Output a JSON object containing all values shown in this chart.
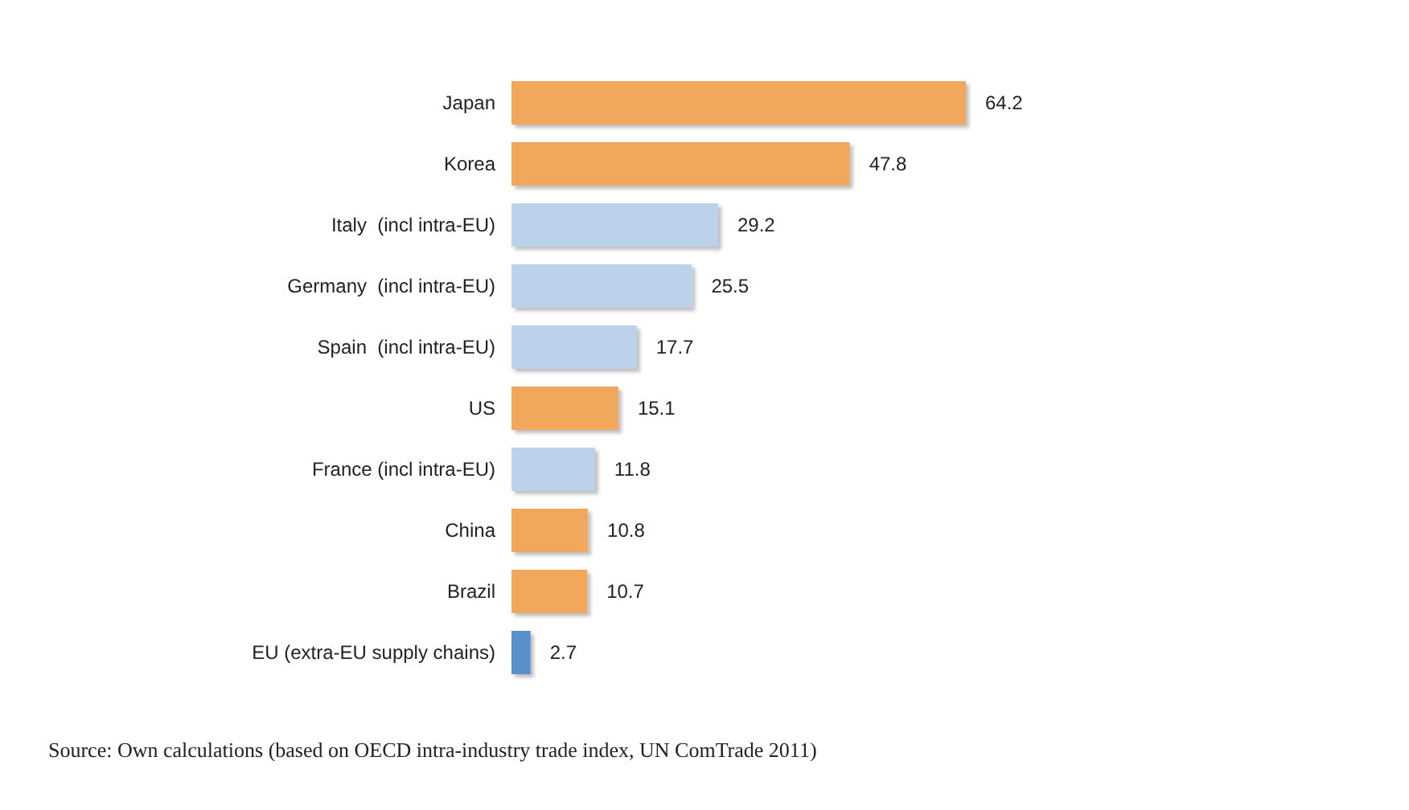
{
  "chart_data": {
    "type": "bar",
    "orientation": "horizontal",
    "categories": [
      "Japan",
      "Korea",
      "Italy  (incl intra-EU)",
      "Germany  (incl intra-EU)",
      "Spain  (incl intra-EU)",
      "US",
      "France (incl intra-EU)",
      "China",
      "Brazil",
      "EU (extra-EU supply chains)"
    ],
    "values": [
      64.2,
      47.8,
      29.2,
      25.5,
      17.7,
      15.1,
      11.8,
      10.8,
      10.7,
      2.7
    ],
    "colors": [
      "#f2a85c",
      "#f2a85c",
      "#bcd2ea",
      "#bcd2ea",
      "#bcd2ea",
      "#f2a85c",
      "#bcd2ea",
      "#f2a85c",
      "#f2a85c",
      "#5a8fcb"
    ],
    "data_labels": true,
    "annotations": [
      "Source: Own calculations (based on OECD intra-industry trade index, UN ComTrade 2011)"
    ]
  }
}
